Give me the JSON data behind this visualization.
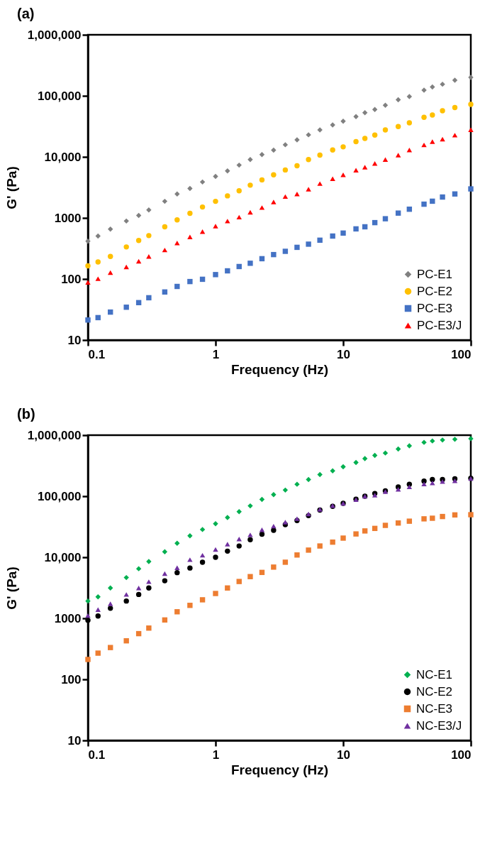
{
  "chart_data": [
    {
      "type": "scatter",
      "title": "(a)",
      "xlabel": "Frequency (Hz)",
      "ylabel": "G' (Pa)",
      "log": "xy",
      "legend": "bottom right",
      "grid": false,
      "x": [
        0.1,
        0.12,
        0.15,
        0.2,
        0.25,
        0.3,
        0.4,
        0.5,
        0.63,
        0.79,
        1,
        1.24,
        1.53,
        1.87,
        2.31,
        2.85,
        3.52,
        4.35,
        5.35,
        6.57,
        8.27,
        10,
        12.6,
        14.8,
        17.7,
        21.4,
        27,
        33,
        43,
        50,
        60,
        75,
        100
      ],
      "xlim": [
        0.1,
        100
      ],
      "xticks": [
        0.1,
        1,
        10,
        100
      ],
      "ylim": [
        10,
        1000000
      ],
      "yticks": [
        10,
        100,
        1000,
        {
          "value": 10000,
          "label": "10,000"
        },
        {
          "value": 100000,
          "label": "100,000"
        },
        {
          "value": 1000000,
          "label": "1,000,000"
        }
      ],
      "series": [
        {
          "name": "PC-E1",
          "color": "#808080",
          "marker": "diamond",
          "values": [
            417,
            505,
            656,
            890,
            1100,
            1350,
            1870,
            2470,
            3040,
            3880,
            4790,
            5900,
            7330,
            9030,
            10900,
            12900,
            15800,
            19000,
            23000,
            27600,
            33400,
            38400,
            45700,
            53000,
            59800,
            70100,
            86300,
            97500,
            124000,
            140000,
            155000,
            180000,
            201000
          ]
        },
        {
          "name": "PC-E2",
          "color": "#ffc000",
          "marker": "circle",
          "values": [
            164,
            190,
            234,
            335,
            428,
            514,
            716,
            930,
            1190,
            1510,
            1870,
            2300,
            2790,
            3440,
            4200,
            5090,
            6110,
            7140,
            9030,
            10700,
            13000,
            14600,
            17800,
            20100,
            22800,
            27600,
            31400,
            36100,
            44500,
            48600,
            56900,
            64300,
            72600
          ]
        },
        {
          "name": "PC-E3",
          "color": "#4472c4",
          "marker": "square",
          "values": [
            21.3,
            23.3,
            28.7,
            34.5,
            41.0,
            49.3,
            61.3,
            75.5,
            90.8,
            98.9,
            118,
            136,
            160,
            181,
            215,
            251,
            284,
            330,
            372,
            432,
            505,
            565,
            662,
            716,
            838,
            970,
            1200,
            1390,
            1680,
            1880,
            2200,
            2470,
            2990
          ]
        },
        {
          "name": "PC-E3/J",
          "color": "#ff0000",
          "marker": "triangle",
          "values": [
            88,
            101,
            127,
            158,
            195,
            234,
            299,
            389,
            488,
            596,
            735,
            890,
            1030,
            1240,
            1480,
            1830,
            2240,
            2470,
            2960,
            3650,
            4380,
            5090,
            6060,
            6780,
            7800,
            9030,
            10700,
            13000,
            15700,
            17800,
            19500,
            22700,
            27800
          ]
        }
      ]
    },
    {
      "type": "scatter",
      "title": "(b)",
      "xlabel": "Frequency (Hz)",
      "ylabel": "G' (Pa)",
      "log": "xy",
      "legend": "bottom right",
      "grid": false,
      "x": [
        0.1,
        0.12,
        0.15,
        0.2,
        0.25,
        0.3,
        0.4,
        0.5,
        0.63,
        0.79,
        1,
        1.24,
        1.53,
        1.87,
        2.31,
        2.85,
        3.52,
        4.35,
        5.35,
        6.57,
        8.27,
        10,
        12.6,
        14.8,
        17.7,
        21.4,
        27,
        33,
        43,
        50,
        60,
        75,
        100
      ],
      "xlim": [
        0.1,
        100
      ],
      "xticks": [
        0.1,
        1,
        10,
        100
      ],
      "ylim": [
        10,
        1000000
      ],
      "yticks": [
        10,
        100,
        1000,
        {
          "value": 10000,
          "label": "10,000"
        },
        {
          "value": 100000,
          "label": "100,000"
        },
        {
          "value": 1000000,
          "label": "1,000,000"
        }
      ],
      "series": [
        {
          "name": "NC-E1",
          "color": "#00b050",
          "marker": "diamond",
          "values": [
            1920,
            2250,
            3140,
            4650,
            6490,
            8510,
            12300,
            17000,
            22500,
            28500,
            35400,
            44800,
            55800,
            69500,
            88800,
            106000,
            126000,
            157000,
            188000,
            226000,
            260000,
            304000,
            356000,
            413000,
            467000,
            510000,
            592000,
            668000,
            762000,
            804000,
            832000,
            855000,
            877000
          ]
        },
        {
          "name": "NC-E2",
          "color": "#000000",
          "marker": "circle",
          "values": [
            931,
            1090,
            1460,
            1920,
            2460,
            3140,
            4120,
            5600,
            6670,
            8300,
            9980,
            12600,
            15300,
            19400,
            23900,
            27700,
            34200,
            40000,
            48100,
            59300,
            68200,
            76400,
            89500,
            100000,
            111000,
            122000,
            142000,
            157000,
            177000,
            188000,
            188000,
            193000,
            197000
          ]
        },
        {
          "name": "NC-E3",
          "color": "#ed7d31",
          "marker": "square",
          "values": [
            212,
            269,
            332,
            428,
            561,
            692,
            940,
            1280,
            1630,
            2010,
            2550,
            3140,
            4010,
            4820,
            5650,
            6900,
            8300,
            10900,
            13100,
            15300,
            17700,
            20600,
            24100,
            27000,
            29700,
            33300,
            36400,
            39000,
            42600,
            43600,
            46500,
            49400,
            49800
          ]
        },
        {
          "name": "NC-E3/J",
          "color": "#7030a0",
          "marker": "triangle",
          "values": [
            1110,
            1390,
            1730,
            2460,
            3140,
            3980,
            5400,
            6730,
            9140,
            10800,
            13400,
            16400,
            19900,
            23300,
            28200,
            32400,
            37700,
            42900,
            51100,
            60900,
            70000,
            76400,
            87900,
            100000,
            104000,
            119000,
            130000,
            142000,
            159000,
            165000,
            174000,
            179000,
            195000
          ]
        }
      ]
    }
  ]
}
